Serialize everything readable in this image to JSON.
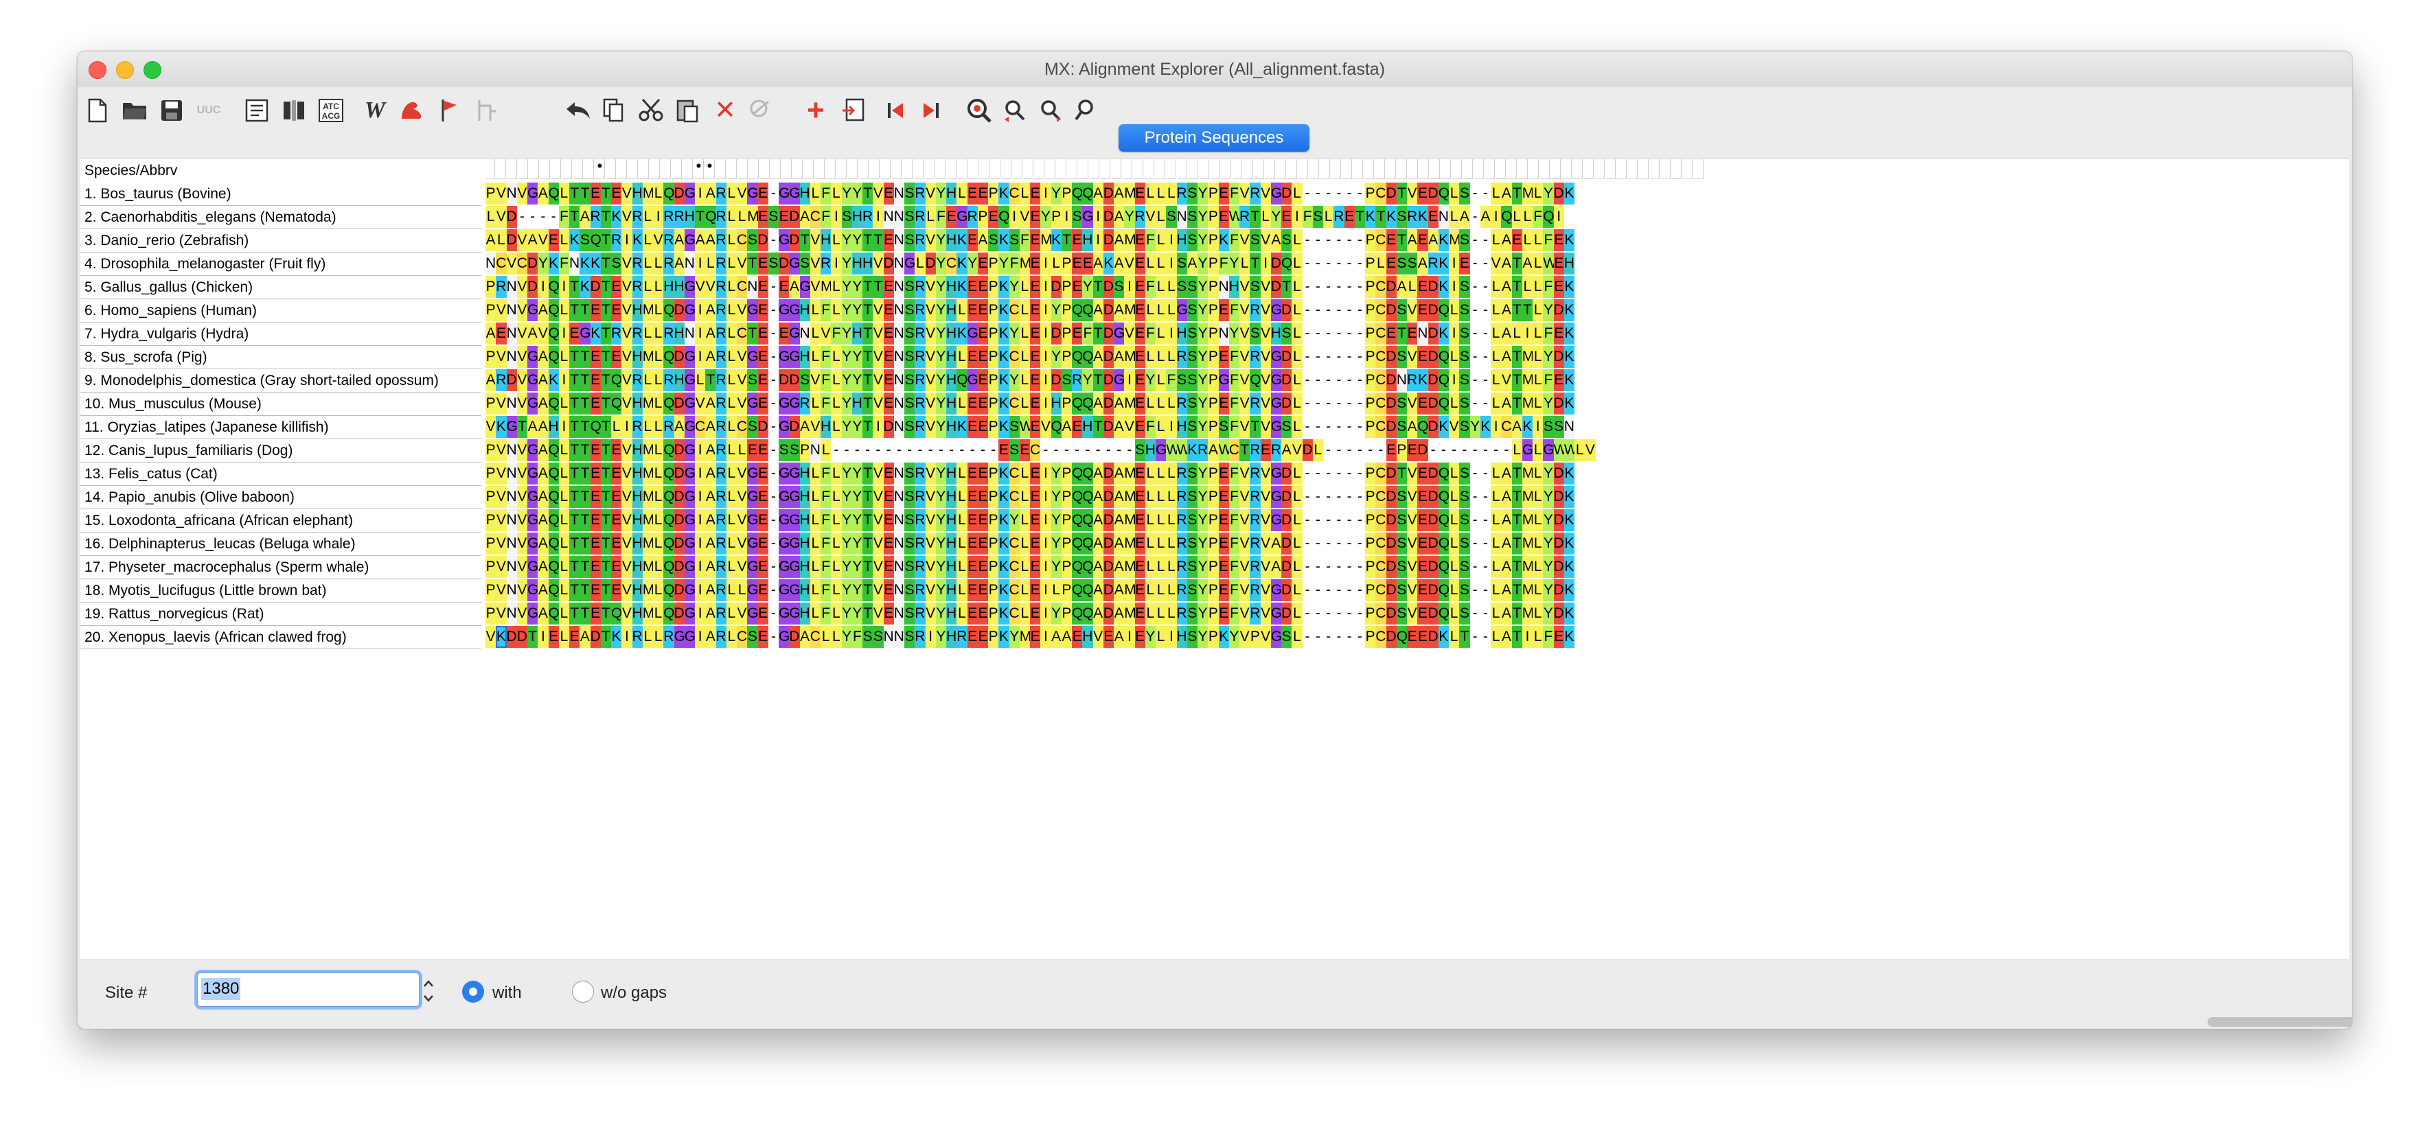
{
  "window": {
    "title": "MX: Alignment Explorer (All_alignment.fasta)"
  },
  "colors": {
    "A": "#f8f25a",
    "R": "#34c8f0",
    "N": "#f4f4f4",
    "D": "#ee4a3c",
    "C": "#fadc4c",
    "Q": "#35c235",
    "E": "#ee4a3c",
    "G": "#9b46e6",
    "H": "#38c7c8",
    "I": "#f8f25a",
    "L": "#f8f25a",
    "K": "#34c8f0",
    "M": "#f8f25a",
    "F": "#b4f056",
    "P": "#f8f25a",
    "S": "#35c235",
    "T": "#35c235",
    "W": "#b4f056",
    "Y": "#b4f056",
    "V": "#f8f25a",
    "-": "#ffffff"
  },
  "toolbar": {
    "icons": [
      "new-file-icon",
      "open-folder-icon",
      "save-icon",
      "uuc-icon",
      "translate-icon",
      "columns-icon",
      "dna-icon",
      "web-icon",
      "muscle-icon",
      "flag-icon",
      "tree-icon",
      "undo-icon",
      "copy-icon",
      "cut-icon",
      "paste-icon",
      "delete-icon",
      "delete-gap-icon",
      "add-icon",
      "insert-icon",
      "prev-icon",
      "next-icon",
      "find-icon",
      "zoom-prev-icon",
      "zoom-next-icon",
      "search-icon"
    ]
  },
  "sequence_type_label": "Protein Sequences",
  "alignment": {
    "header": "Species/Abbrv",
    "conservation": "          *        **                                                                                          ",
    "species": [
      "1. Bos_taurus (Bovine)",
      "2. Caenorhabditis_elegans (Nematoda)",
      "3. Danio_rerio (Zebrafish)",
      "4. Drosophila_melanogaster (Fruit fly)",
      "5. Gallus_gallus (Chicken)",
      "6. Homo_sapiens (Human)",
      "7. Hydra_vulgaris (Hydra)",
      "8. Sus_scrofa (Pig)",
      "9. Monodelphis_domestica (Gray short-tailed opossum)",
      "10. Mus_musculus (Mouse)",
      "11. Oryzias_latipes (Japanese killifish)",
      "12. Canis_lupus_familiaris (Dog)",
      "13. Felis_catus (Cat)",
      "14. Papio_anubis (Olive baboon)",
      "15. Loxodonta_africana (African elephant)",
      "16. Delphinapterus_leucas (Beluga whale)",
      "17. Physeter_macrocephalus (Sperm whale)",
      "18. Myotis_lucifugus (Little brown bat)",
      "19. Rattus_norvegicus (Rat)",
      "20. Xenopus_laevis (African clawed frog)"
    ],
    "sequences": [
      "PVNVGAQLTTETEVHMLQDGIARLVGE-GGHLFLYYTVENSRVYHLEEPKCLEIYPQQADAMELLLRSYPEFVRVGDL------PCDTVEDQLS--LATMLYDK",
      "LVD----FTARTKVRLIRRHTQRLLMESEDACFISHRINNSRLFEGRPEQIVEYPISGIDAYRVLSNSYPEWRTLYEIFSLRETKTKSRKENLA-AIQLLFQI",
      "ALDVAVELKSQTRIKLVRAGAARLCSD-GDTVHLYYTTENSRVYHKEASKSFEMKTEHIDAMEFLIHSYPKFVSVASL------PCETAEAKMS--LAELLFEK",
      "NCVCDYKFNKKTSVRLLRANILRLVTESDGSVRIYHHVDNGLDYCKYEPYFMEILPEEAKAVELLISAYPFYLTIDQL------PLESSARKIE--VATALWEH",
      "PRNVDIQITKDTEVRLLHHGVVRLCNE-EAGVMLYYTTENSRVYHKEEPKYLEIDPEYTDSIEFLLSSYPNHVSVDTL------PCDALEDKIS--LATLLFEK",
      "PVNVGAQLTTETEVHMLQDGIARLVGE-GGHLFLYYTVENSRVYHLEEPKCLEIYPQQADAMELLLGSYPEFVRVGDL------PCDSVEDQLS--LATTLYDK",
      "AENVAVQIEGKTRVRLLRHNIARLCTE-EGNLVFYHTVENSRVYHKGEPKYLEIDPEFTDGVEFLIHSYPNYVSVHSL------PCETENDKIS--LALILFEK",
      "PVNVGAQLTTETEVHMLQDGIARLVGE-GGHLFLYYTVENSRVYHLEEPKCLEIYPQQADAMELLLRSYPEFVRVGDL------PCDSVEDQLS--LATMLYDK",
      "ARDVGAKITTETQVRLLRHGLTRLVSE-DDSVFLYYTVENSRVYHQGEPKYLEIDSRYTDGIEYLFSSYPGFVQVGDL------PCDNRKDQIS--LVTMLFEK",
      "PVNVGAQLTTETQVHMLQDGVARLVGE-GGRLFLYHTVENSRVYHLEEPKCLEIHPQQADAMELLLRSYPEFVRVGDL------PCDSVEDQLS--LATMLYDK",
      "VKGTAAHITTQTLIRLLRAGCARLCSD-GDAVHLYYTIDNSRVYHKEEPKSWEVQAEHTDAVEFLIHSYPSFVTVGSL------PCDSAQDKVSYKICAKISSN",
      "PVNVGAQLTTETEVHMLQDGIARLLEE-SSPNL----------------ESEC---------SHGWWKRAWCTRERAVDL------EPED--------LGLGWWLV",
      "PVNVGAQLTTETEVHMLQDGIARLVGE-GGHLFLYYTVENSRVYHLEEPKCLEIYPQQADAMELLLRSYPEFVRVGDL------PCDTVEDQLS--LATMLYDK",
      "PVNVGAQLTTETEVHMLQDGIARLVGE-GGHLFLYYTVENSRVYHLEEPKCLEIYPQQADAMELLLRSYPEFVRVGDL------PCDSVEDQLS--LATMLYDK",
      "PVNVGAQLTTETEVHMLQDGIARLVGE-GGHLFLYYTVENSRVYHLEEPKYLEIYPQQADAMELLLRSYPEFVRVGDL------PCDSVEDQLS--LATMLYDK",
      "PVNVGAQLTTETEVHMLQDGIARLVGE-GGHLFLYYTVENSRVYHLEEPKCLEIYPQQADAMELLLRSYPEFVRVADL------PCDSVEDQLS--LATMLYDK",
      "PVNVGAQLTTETEVHMLQDGIARLVGE-GGHLFLYYTVENSRVYHLEEPKCLEIYPQQADAMELLLRSYPEFVRVADL------PCDSVEDQLS--LATMLYDK",
      "PVNVGAQLTTETEVHMLQDGIARLLGE-GGHLFLYYTVENSRVYHLEEPKCLEILPQQADAMELLLRSYPEFVRVGDL------PCDSVEDQLS--LATMLYDK",
      "PVNVGAQLTTETQVHMLQDGIARLVGE-GGHLFLYYTVENSRVYHLEEPKCLEIYPQQADAMELLLRSYPEFVRVGDL------PCDSVEDQLS--LATMLYDK",
      "VKDDTIELEADTKIRLLRGGIARLCSE-GDACLLYFSSNNSRIYHREEPKYMEIAAEHVEAIEYLIHSYPKYVPVGSL------PCDQEEDKLT--LATILFEK"
    ]
  },
  "bottom": {
    "site_label": "Site #",
    "site_value": "1380",
    "radio_with": "with",
    "radio_without": "w/o gaps",
    "selected": "with"
  }
}
